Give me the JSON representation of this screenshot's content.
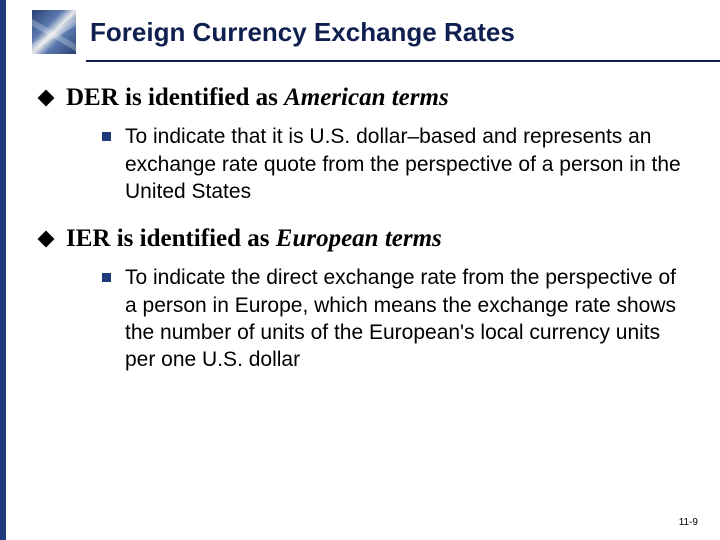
{
  "header": {
    "title": "Foreign Currency Exchange Rates"
  },
  "points": [
    {
      "lead": "DER is identified as ",
      "em": "American terms",
      "sub": "To indicate that it is U.S. dollar–based and represents an exchange rate quote from the perspective of a person in the United States"
    },
    {
      "lead": "IER is identified as ",
      "em": "European terms",
      "sub": "To indicate the direct exchange rate from the perspective of a person in Europe, which means the exchange rate shows the number of units of the European's local currency units per one U.S. dollar"
    }
  ],
  "page_number": "11-9",
  "colors": {
    "navy": "#0f2050",
    "stripe": "#1f3a7a",
    "square": "#1f3a7a",
    "text": "#000000",
    "background": "#ffffff"
  },
  "typography": {
    "title_family": "Trebuchet MS",
    "body_family": "Georgia",
    "title_fontsize_pt": 20,
    "point_fontsize_pt": 19,
    "sub_fontsize_pt": 16,
    "pagenum_fontsize_pt": 8
  }
}
